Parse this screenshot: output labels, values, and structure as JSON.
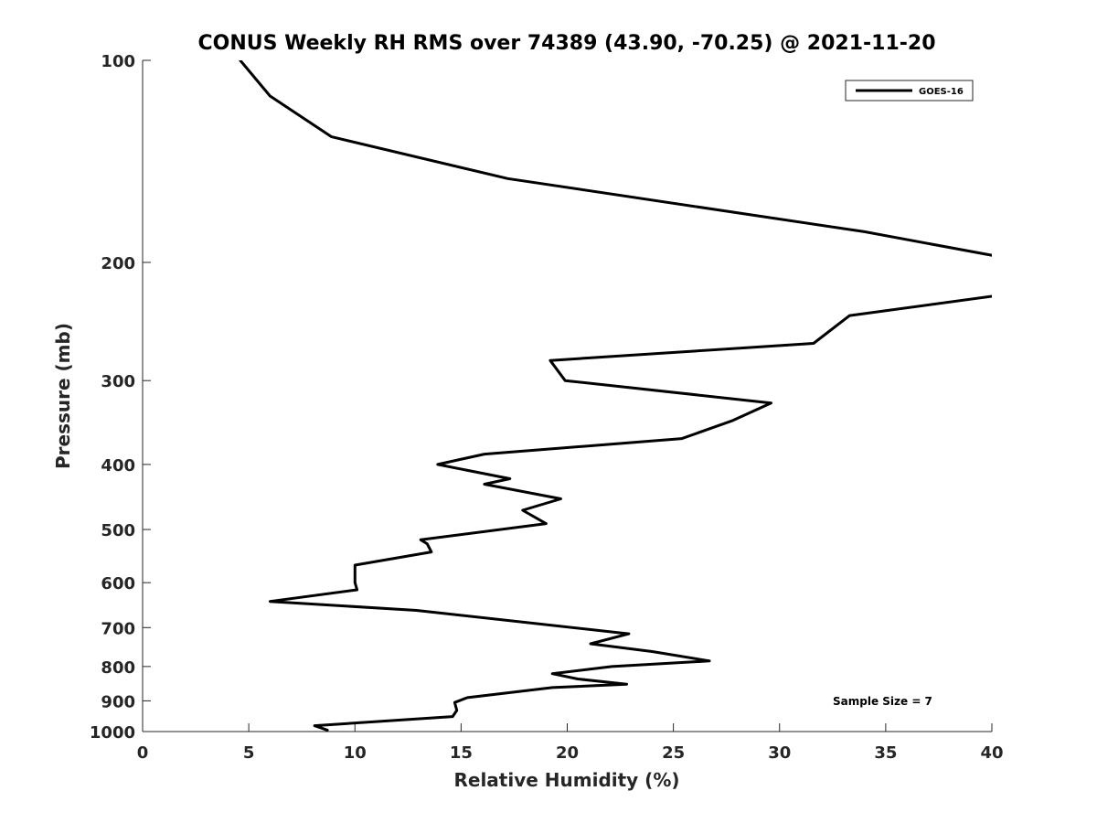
{
  "chart_data": {
    "type": "line",
    "title": "CONUS Weekly RH RMS over 74389 (43.90, -70.25) @ 2021-11-20",
    "xlabel": "Relative Humidity (%)",
    "ylabel": "Pressure (mb)",
    "xlim": [
      0,
      40
    ],
    "ylim": [
      100,
      1000
    ],
    "y_scale": "log",
    "y_reversed": true,
    "x_ticks": [
      0,
      5,
      10,
      15,
      20,
      25,
      30,
      35,
      40
    ],
    "y_ticks": [
      100,
      200,
      300,
      400,
      500,
      600,
      700,
      800,
      900,
      1000
    ],
    "grid": false,
    "legend_position": "top-right",
    "annotation": "Sample Size = 7",
    "series": [
      {
        "name": "GOES-16",
        "color": "#000000",
        "x": [
          4.6,
          6.0,
          8.9,
          17.2,
          34.0,
          40.3,
          null,
          40.3,
          33.3,
          31.6,
          19.2,
          19.9,
          29.6,
          27.8,
          25.4,
          16.1,
          13.9,
          17.3,
          16.1,
          19.7,
          17.9,
          19.0,
          13.1,
          13.4,
          13.6,
          10.0,
          10.0,
          10.0,
          10.1,
          6.0,
          12.9,
          22.9,
          21.1,
          24.0,
          26.7,
          22.1,
          19.3,
          20.5,
          22.8,
          19.3,
          15.3,
          14.7,
          14.8,
          14.6,
          8.1,
          8.7
        ],
        "y": [
          100,
          113,
          130,
          150,
          180,
          196,
          null,
          224,
          240,
          264,
          280,
          300,
          324,
          344,
          366,
          386,
          400,
          420,
          428,
          450,
          468,
          490,
          518,
          525,
          540,
          565,
          580,
          600,
          615,
          640,
          660,
          715,
          740,
          760,
          785,
          800,
          820,
          835,
          850,
          860,
          890,
          905,
          930,
          950,
          980,
          995
        ]
      }
    ]
  }
}
